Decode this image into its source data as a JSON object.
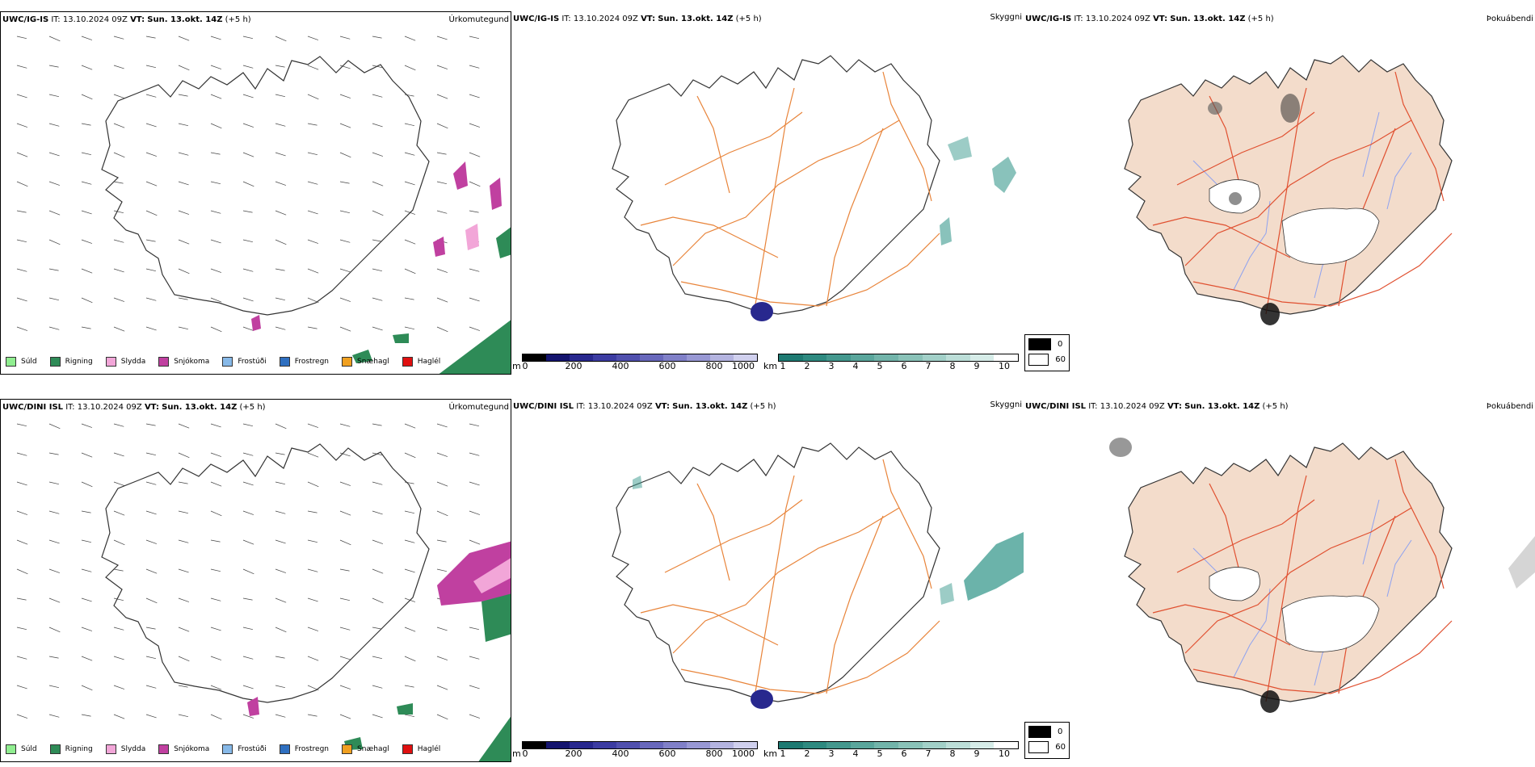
{
  "common": {
    "it_label": "IT:",
    "it_value": "13.10.2024 09Z",
    "vt_label": "VT:",
    "vt_value": "Sun. 13.okt. 14Z",
    "lead": "(+5 h)"
  },
  "rows": [
    {
      "model": "UWC/IG-IS"
    },
    {
      "model": "UWC/DINI ISL"
    }
  ],
  "titles": {
    "precip": "Úrkomutegund",
    "visibility": "Skyggni",
    "fog": "Þokuábendi"
  },
  "precip_legend": [
    {
      "label": "Súld",
      "color": "#90ee90"
    },
    {
      "label": "Rigning",
      "color": "#2e8b57"
    },
    {
      "label": "Slydda",
      "color": "#f2a6d8"
    },
    {
      "label": "Snjókoma",
      "color": "#c040a0"
    },
    {
      "label": "Frostúði",
      "color": "#87b9e8"
    },
    {
      "label": "Frostregn",
      "color": "#2e6fc0"
    },
    {
      "label": "Snæhagl",
      "color": "#f0a020"
    },
    {
      "label": "Haglél",
      "color": "#e01010"
    }
  ],
  "elevation_scale": {
    "unit": "m",
    "ticks": [
      "0",
      "200",
      "400",
      "600",
      "800",
      "1000"
    ],
    "colors": [
      "#000000",
      "#14146e",
      "#28288e",
      "#3c3ca2",
      "#5050ae",
      "#6868bc",
      "#8080c8",
      "#9898d4",
      "#b4b4e0",
      "#d0d0ee"
    ]
  },
  "visibility_scale": {
    "unit": "km",
    "ticks": [
      "1",
      "2",
      "3",
      "4",
      "5",
      "6",
      "7",
      "8",
      "9",
      "10"
    ],
    "colors": [
      "#1e7a72",
      "#2e8a80",
      "#44988e",
      "#5aa69c",
      "#72b4aa",
      "#8ac2b8",
      "#a2d0c8",
      "#bcded8",
      "#d6ece8",
      "#ffffff"
    ]
  },
  "fog_scale": {
    "items": [
      {
        "label": "0",
        "color": "#000000"
      },
      {
        "label": "60",
        "color": "#ffffff"
      }
    ]
  },
  "colors": {
    "land_fill": "#f3dccb",
    "roads": "#e8843a",
    "roads_red": "#e05030",
    "rivers": "#8ea2f0",
    "rain": "#2e8b57",
    "snow": "#c040a0",
    "sleet": "#f2a6d8",
    "vis_low": "#3a9a8e"
  }
}
